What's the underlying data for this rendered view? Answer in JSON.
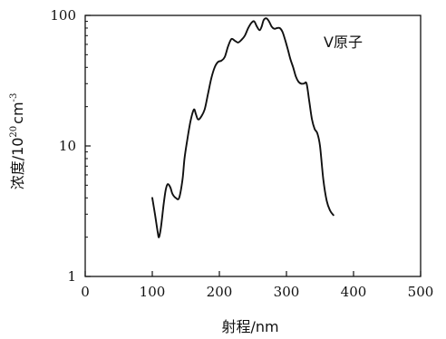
{
  "chart_data": {
    "type": "line",
    "xlabel": "射程/nm",
    "ylabel_main": "浓度/10",
    "ylabel_exp": "20",
    "ylabel_unit": "cm",
    "ylabel_unit_exp": "-3",
    "annotation": "V原子",
    "x_ticks": [
      0,
      100,
      200,
      300,
      400,
      500
    ],
    "y_ticks": [
      1,
      10,
      100
    ],
    "xlim": [
      0,
      500
    ],
    "ylim": [
      1,
      100
    ],
    "y_scale": "log",
    "grid": false,
    "series": [
      {
        "x": [
          100,
          104,
          108,
          110,
          113,
          117,
          120,
          123,
          127,
          130,
          135,
          140,
          145,
          148,
          152,
          157,
          162,
          165,
          168,
          172,
          178,
          183,
          188,
          193,
          198,
          203,
          208,
          213,
          218,
          223,
          228,
          233,
          238,
          243,
          248,
          252,
          256,
          260,
          263,
          266,
          270,
          274,
          278,
          282,
          286,
          290,
          294,
          298,
          302,
          306,
          310,
          314,
          318,
          322,
          326,
          330,
          334,
          338,
          342,
          346,
          350,
          355,
          360,
          365,
          370
        ],
        "y": [
          4.0,
          3.0,
          2.2,
          2.0,
          2.4,
          3.6,
          4.6,
          5.1,
          4.8,
          4.3,
          4.0,
          4.0,
          5.5,
          8.0,
          11.0,
          15.5,
          19.0,
          17.5,
          16.0,
          16.5,
          19.0,
          25.0,
          33.0,
          40.0,
          44.0,
          45.0,
          48.0,
          58.0,
          66.0,
          64.0,
          62.0,
          65.0,
          70.0,
          80.0,
          88.0,
          90.0,
          82.0,
          77.0,
          82.0,
          92.0,
          95.0,
          90.0,
          82.0,
          79.0,
          80.0,
          80.0,
          75.0,
          65.0,
          55.0,
          46.0,
          40.0,
          34.0,
          31.0,
          30.0,
          30.0,
          30.0,
          22.0,
          16.0,
          13.5,
          12.5,
          10.0,
          5.5,
          3.8,
          3.2,
          2.95
        ]
      }
    ]
  }
}
